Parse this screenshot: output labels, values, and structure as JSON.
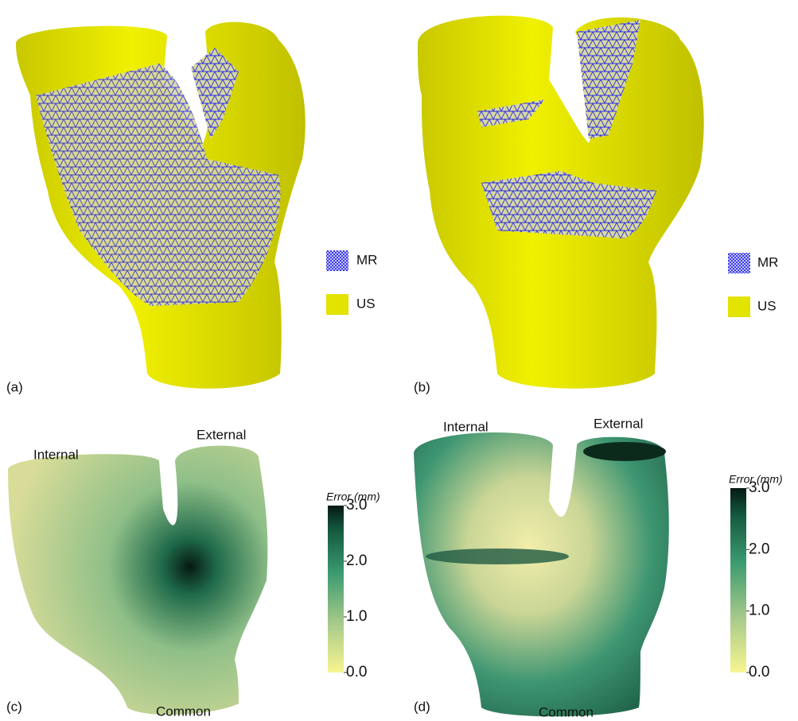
{
  "panels": [
    {
      "label": "(a)",
      "legend": [
        {
          "name": "MR",
          "color": "#2a2ae6"
        },
        {
          "name": "US",
          "color": "#e3e300"
        }
      ]
    },
    {
      "label": "(b)",
      "legend": [
        {
          "name": "MR",
          "color": "#2a2ae6"
        },
        {
          "name": "US",
          "color": "#e3e300"
        }
      ]
    },
    {
      "label": "(c)",
      "vessels": {
        "internal": "Internal",
        "external": "External",
        "common": "Common"
      },
      "colorbar": {
        "title": "Error (mm)",
        "lim": [
          0,
          3
        ],
        "ticks": [
          {
            "value": 3,
            "label": "3.0"
          },
          {
            "value": 2,
            "label": "2.0"
          },
          {
            "value": 1,
            "label": "1.0"
          },
          {
            "value": 0,
            "label": "0.0"
          }
        ]
      }
    },
    {
      "label": "(d)",
      "vessels": {
        "internal": "Internal",
        "external": "External",
        "common": "Common"
      },
      "colorbar": {
        "title": "Error (mm)",
        "lim": [
          0,
          3
        ],
        "ticks": [
          {
            "value": 3,
            "label": "3.0"
          },
          {
            "value": 2,
            "label": "2.0"
          },
          {
            "value": 1,
            "label": "1.0"
          },
          {
            "value": 0,
            "label": "0.0"
          }
        ]
      }
    }
  ]
}
